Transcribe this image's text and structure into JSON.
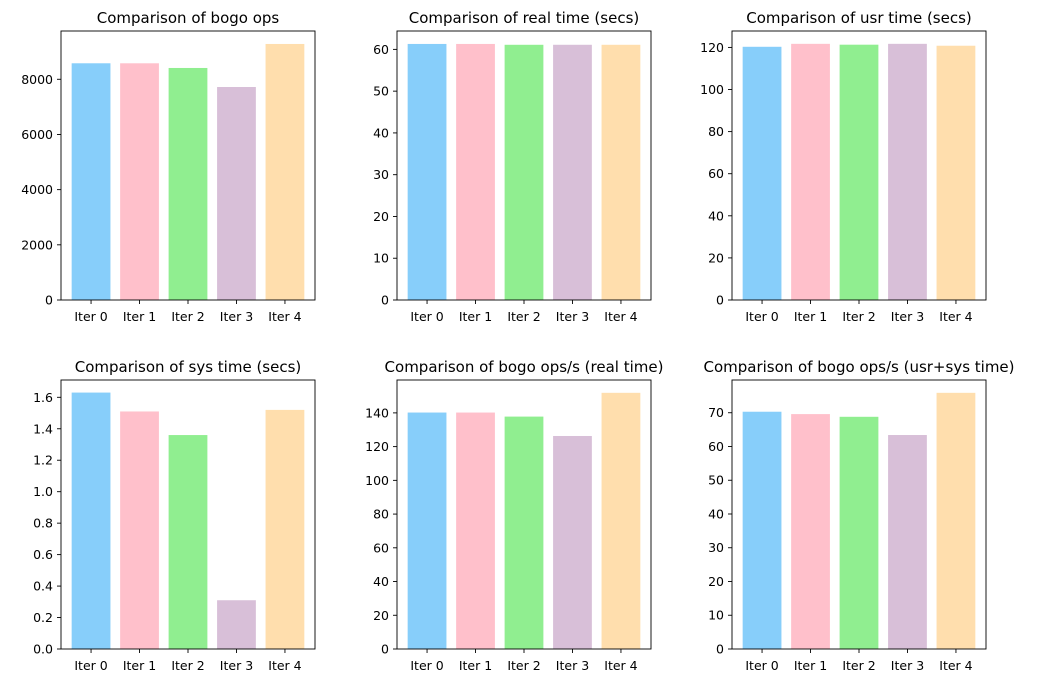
{
  "colors": [
    "#87CEFA",
    "#FFC0CB",
    "#90EE90",
    "#D8BFD8",
    "#FFDEAD"
  ],
  "chart_data": [
    {
      "type": "bar",
      "title": "Comparison of bogo ops",
      "categories": [
        "Iter 0",
        "Iter 1",
        "Iter 2",
        "Iter 3",
        "Iter 4"
      ],
      "values": [
        8580,
        8580,
        8410,
        7720,
        9280
      ],
      "ylim": [
        0,
        9750
      ],
      "yticks": [
        0,
        2000,
        4000,
        6000,
        8000
      ],
      "ytick_labels": [
        "0",
        "2000",
        "4000",
        "6000",
        "8000"
      ]
    },
    {
      "type": "bar",
      "title": "Comparison of real time (secs)",
      "categories": [
        "Iter 0",
        "Iter 1",
        "Iter 2",
        "Iter 3",
        "Iter 4"
      ],
      "values": [
        61.3,
        61.3,
        61.1,
        61.1,
        61.1
      ],
      "ylim": [
        0,
        64.4
      ],
      "yticks": [
        0,
        10,
        20,
        30,
        40,
        50,
        60
      ],
      "ytick_labels": [
        "0",
        "10",
        "20",
        "30",
        "40",
        "50",
        "60"
      ]
    },
    {
      "type": "bar",
      "title": "Comparison of usr time (secs)",
      "categories": [
        "Iter 0",
        "Iter 1",
        "Iter 2",
        "Iter 3",
        "Iter 4"
      ],
      "values": [
        120.3,
        121.7,
        121.3,
        121.7,
        120.8
      ],
      "ylim": [
        0,
        127.8
      ],
      "yticks": [
        0,
        20,
        40,
        60,
        80,
        100,
        120
      ],
      "ytick_labels": [
        "0",
        "20",
        "40",
        "60",
        "80",
        "100",
        "120"
      ]
    },
    {
      "type": "bar",
      "title": "Comparison of sys time (secs)",
      "categories": [
        "Iter 0",
        "Iter 1",
        "Iter 2",
        "Iter 3",
        "Iter 4"
      ],
      "values": [
        1.63,
        1.51,
        1.36,
        0.31,
        1.52
      ],
      "ylim": [
        0,
        1.71
      ],
      "yticks": [
        0,
        0.2,
        0.4,
        0.6,
        0.8,
        1.0,
        1.2,
        1.4,
        1.6
      ],
      "ytick_labels": [
        "0.0",
        "0.2",
        "0.4",
        "0.6",
        "0.8",
        "1.0",
        "1.2",
        "1.4",
        "1.6"
      ]
    },
    {
      "type": "bar",
      "title": "Comparison of bogo ops/s (real time)",
      "categories": [
        "Iter 0",
        "Iter 1",
        "Iter 2",
        "Iter 3",
        "Iter 4"
      ],
      "values": [
        140.2,
        140.2,
        137.8,
        126.3,
        151.9
      ],
      "ylim": [
        0,
        159.5
      ],
      "yticks": [
        0,
        20,
        40,
        60,
        80,
        100,
        120,
        140
      ],
      "ytick_labels": [
        "0",
        "20",
        "40",
        "60",
        "80",
        "100",
        "120",
        "140"
      ]
    },
    {
      "type": "bar",
      "title": "Comparison of bogo ops/s (usr+sys time)",
      "categories": [
        "Iter 0",
        "Iter 1",
        "Iter 2",
        "Iter 3",
        "Iter 4"
      ],
      "values": [
        70.3,
        69.6,
        68.8,
        63.4,
        75.9
      ],
      "ylim": [
        0,
        79.7
      ],
      "yticks": [
        0,
        10,
        20,
        30,
        40,
        50,
        60,
        70
      ],
      "ytick_labels": [
        "0",
        "10",
        "20",
        "30",
        "40",
        "50",
        "60",
        "70"
      ]
    }
  ]
}
